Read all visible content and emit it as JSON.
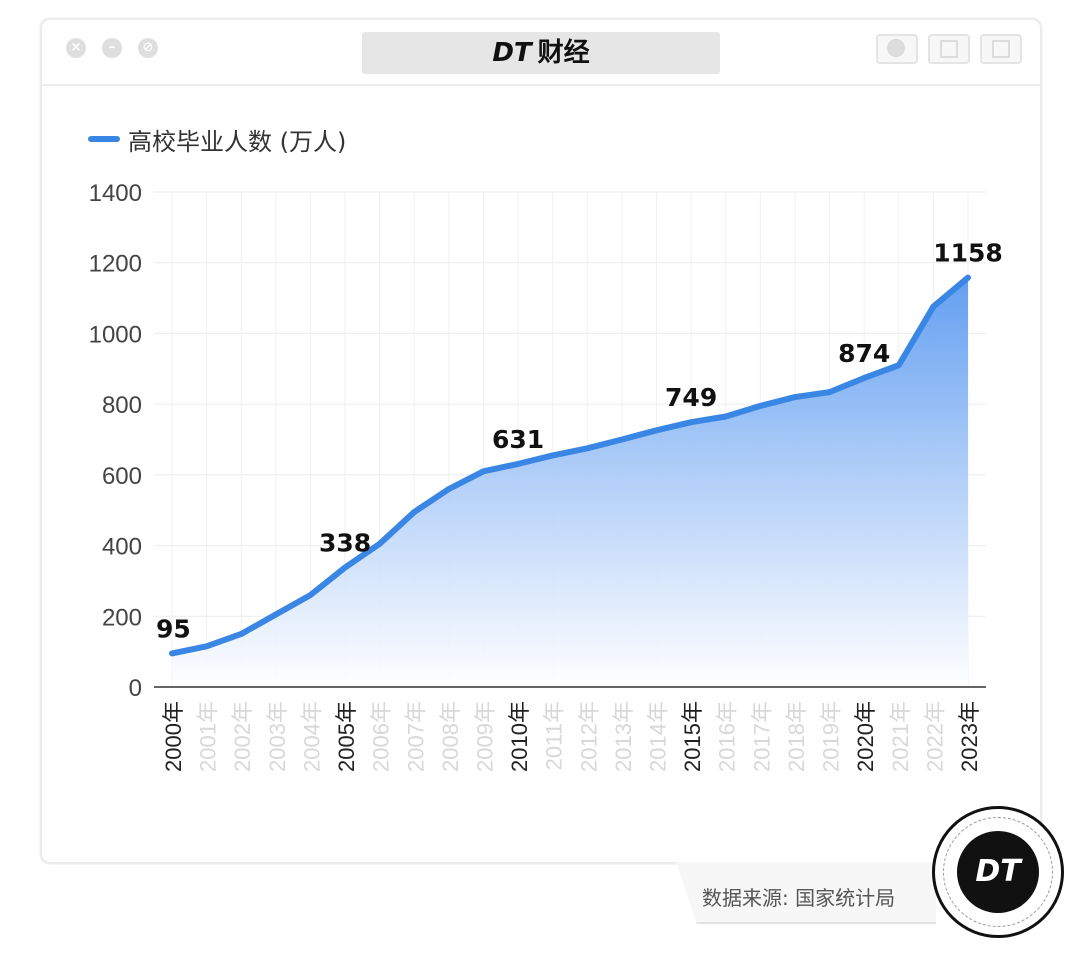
{
  "window": {
    "title": "DT 财经",
    "title_logo": "DT",
    "title_text": "财经"
  },
  "chart_data": {
    "type": "area",
    "legend": "高校毕业人数 (万人)",
    "x": [
      "2000年",
      "2001年",
      "2002年",
      "2003年",
      "2004年",
      "2005年",
      "2006年",
      "2007年",
      "2008年",
      "2009年",
      "2010年",
      "2011年",
      "2012年",
      "2013年",
      "2014年",
      "2015年",
      "2016年",
      "2017年",
      "2018年",
      "2019年",
      "2020年",
      "2021年",
      "2022年",
      "2023年"
    ],
    "highlighted_ticks": [
      "2000年",
      "2005年",
      "2010年",
      "2015年",
      "2020年",
      "2023年"
    ],
    "values": [
      95,
      115,
      150,
      205,
      260,
      338,
      405,
      495,
      560,
      610,
      631,
      655,
      675,
      700,
      726,
      749,
      765,
      795,
      820,
      834,
      874,
      910,
      1076,
      1158
    ],
    "data_labels": [
      {
        "x": "2000年",
        "label": "95"
      },
      {
        "x": "2005年",
        "label": "338"
      },
      {
        "x": "2010年",
        "label": "631"
      },
      {
        "x": "2015年",
        "label": "749"
      },
      {
        "x": "2020年",
        "label": "874"
      },
      {
        "x": "2023年",
        "label": "1158"
      }
    ],
    "yticks": [
      "0",
      "200",
      "400",
      "600",
      "800",
      "1000",
      "1200",
      "1400"
    ],
    "ylim": [
      0,
      1400
    ],
    "grid": true,
    "legend_position": "top-left",
    "colors": {
      "line": "#3a86e4",
      "fill_top": "#5b9af0",
      "fill_bottom": "#ffffff"
    }
  },
  "footer": {
    "source": "数据来源: 国家统计局",
    "badge": "DT"
  }
}
